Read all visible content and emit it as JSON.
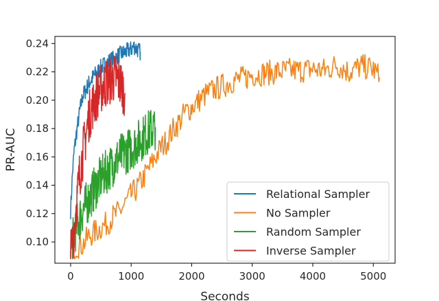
{
  "chart_data": {
    "type": "line",
    "title": "",
    "xlabel": "Seconds",
    "ylabel": "PR-AUC",
    "xlim": [
      -260,
      5360
    ],
    "ylim": [
      0.085,
      0.245
    ],
    "xticks": [
      0,
      1000,
      2000,
      3000,
      4000,
      5000
    ],
    "yticks": [
      0.1,
      0.12,
      0.14,
      0.16,
      0.18,
      0.2,
      0.22,
      0.24
    ],
    "xtick_labels": [
      "0",
      "1000",
      "2000",
      "3000",
      "4000",
      "5000"
    ],
    "ytick_labels": [
      "0.10",
      "0.12",
      "0.14",
      "0.16",
      "0.18",
      "0.20",
      "0.22",
      "0.24"
    ],
    "grid": false,
    "legend_position": "lower-right",
    "series": [
      {
        "name": "Relational Sampler",
        "color": "#1f77b4",
        "x": [
          0,
          30,
          60,
          100,
          150,
          200,
          250,
          300,
          350,
          400,
          450,
          500,
          550,
          600,
          650,
          700,
          750,
          800,
          850,
          900,
          950,
          1000,
          1050,
          1100,
          1150
        ],
        "y": [
          0.122,
          0.148,
          0.165,
          0.178,
          0.192,
          0.203,
          0.207,
          0.212,
          0.215,
          0.218,
          0.22,
          0.223,
          0.225,
          0.226,
          0.228,
          0.229,
          0.23,
          0.232,
          0.233,
          0.234,
          0.235,
          0.236,
          0.238,
          0.236,
          0.234
        ]
      },
      {
        "name": "No Sampler",
        "color": "#ff7f0e",
        "x": [
          0,
          100,
          200,
          300,
          400,
          500,
          600,
          700,
          800,
          900,
          1000,
          1100,
          1200,
          1300,
          1400,
          1500,
          1600,
          1700,
          1800,
          1900,
          2000,
          2100,
          2200,
          2300,
          2400,
          2500,
          2600,
          2700,
          2800,
          2900,
          3000,
          3200,
          3400,
          3600,
          3800,
          4000,
          4200,
          4400,
          4600,
          4800,
          5000,
          5100
        ],
        "y": [
          0.093,
          0.097,
          0.098,
          0.104,
          0.107,
          0.11,
          0.113,
          0.118,
          0.121,
          0.127,
          0.133,
          0.138,
          0.145,
          0.152,
          0.16,
          0.167,
          0.172,
          0.18,
          0.185,
          0.192,
          0.195,
          0.199,
          0.203,
          0.206,
          0.208,
          0.21,
          0.212,
          0.214,
          0.215,
          0.216,
          0.218,
          0.219,
          0.22,
          0.221,
          0.221,
          0.222,
          0.221,
          0.225,
          0.22,
          0.224,
          0.222,
          0.216
        ]
      },
      {
        "name": "Random Sampler",
        "color": "#2ca02c",
        "x": [
          0,
          100,
          200,
          300,
          400,
          500,
          600,
          700,
          800,
          900,
          1000,
          1100,
          1200,
          1300,
          1400
        ],
        "y": [
          0.095,
          0.112,
          0.122,
          0.13,
          0.138,
          0.145,
          0.15,
          0.155,
          0.16,
          0.163,
          0.166,
          0.17,
          0.174,
          0.178,
          0.181
        ]
      },
      {
        "name": "Inverse Sampler",
        "color": "#d62728",
        "x": [
          0,
          50,
          100,
          150,
          200,
          250,
          300,
          350,
          400,
          450,
          500,
          550,
          600,
          650,
          700,
          750,
          800,
          850,
          900
        ],
        "y": [
          0.09,
          0.108,
          0.128,
          0.148,
          0.162,
          0.175,
          0.188,
          0.195,
          0.2,
          0.205,
          0.208,
          0.211,
          0.213,
          0.214,
          0.215,
          0.216,
          0.213,
          0.21,
          0.205
        ]
      }
    ]
  }
}
